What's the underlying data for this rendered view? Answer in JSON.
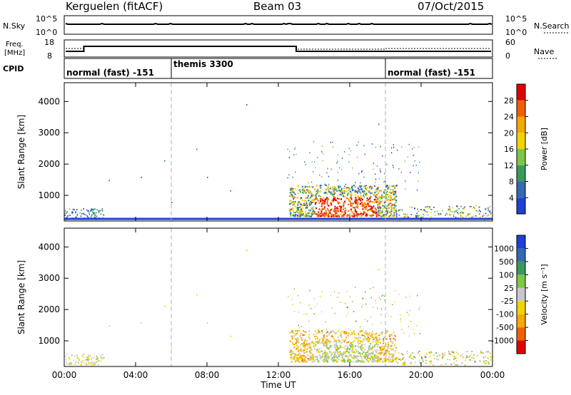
{
  "header": {
    "station": "Kerguelen (fitACF)",
    "beam": "Beam 03",
    "date": "07/Oct/2015"
  },
  "panels": {
    "nsky": {
      "label": "N.Sky",
      "left_ticks": [
        "10^5",
        "10^0"
      ],
      "right_ticks": [
        "10^5",
        "10^0"
      ],
      "legend": "N.Search"
    },
    "freq": {
      "label_line1": "Freq.",
      "label_line2": "[MHz]",
      "left_ticks": [
        "18",
        "8"
      ],
      "right_ticks": [
        "60",
        "0"
      ],
      "legend": "Nave"
    },
    "cpid": {
      "label": "CPID",
      "segments": [
        "normal (fast) -151",
        "themis 3300",
        "normal (fast) -151"
      ]
    }
  },
  "chart_data": [
    {
      "type": "heatmap",
      "name": "power",
      "ylabel": "Slant Range [km]",
      "ylim": [
        180,
        4600
      ],
      "yticks": [
        1000,
        2000,
        3000,
        4000
      ],
      "xlabel": "",
      "xticks": [
        "00:00",
        "04:00",
        "08:00",
        "12:00",
        "16:00",
        "20:00",
        "00:00"
      ],
      "xlim_hours": [
        0,
        24
      ],
      "colorbar": {
        "label": "Power [dB]",
        "ticks": [
          "4",
          "8",
          "12",
          "16",
          "20",
          "24",
          "28"
        ],
        "colors": [
          "#1f3fd6",
          "#3469b4",
          "#3a9a5c",
          "#7ec646",
          "#f2d200",
          "#f6a800",
          "#f06000",
          "#e00000"
        ]
      },
      "boundaries_hours": [
        6.0,
        18.0
      ]
    },
    {
      "type": "heatmap",
      "name": "velocity",
      "ylabel": "Slant Range [km]",
      "ylim": [
        180,
        4600
      ],
      "yticks": [
        1000,
        2000,
        3000,
        4000
      ],
      "xlabel": "Time UT",
      "xticks": [
        "00:00",
        "04:00",
        "08:00",
        "12:00",
        "16:00",
        "20:00",
        "00:00"
      ],
      "xlim_hours": [
        0,
        24
      ],
      "colorbar": {
        "label": "Velocity [m s⁻¹]",
        "ticks": [
          "1000",
          "500",
          "100",
          "25",
          "-25",
          "-100",
          "-500",
          "-1000"
        ],
        "colors": [
          "#1f3fd6",
          "#3469b4",
          "#3a9a5c",
          "#7ec646",
          "#c8c8c8",
          "#f2d200",
          "#f6a800",
          "#f06000",
          "#e00000"
        ]
      },
      "boundaries_hours": [
        6.0,
        18.0
      ]
    }
  ]
}
